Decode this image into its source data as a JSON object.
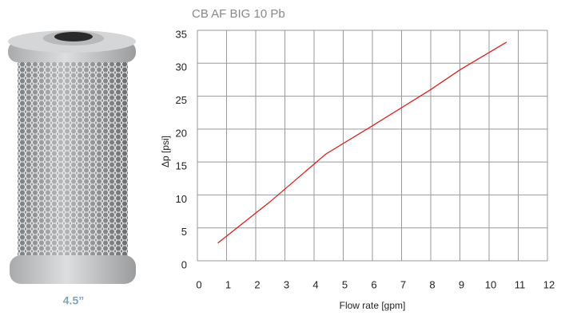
{
  "product": {
    "caption": "4.5”"
  },
  "chart_data": {
    "type": "line",
    "title": "CB AF BIG 10 Pb",
    "x_label": "Flow rate [gpm]",
    "y_label": "Δp [psi]",
    "series": [
      {
        "name": "CB AF BIG 10 Pb",
        "color": "#e0201c",
        "x": [
          0.7,
          2.5,
          4.4,
          6,
          8,
          9,
          10.6
        ],
        "values": [
          2.7,
          9,
          16.2,
          20.5,
          26,
          29,
          33.2
        ]
      }
    ],
    "xlim": [
      0,
      12
    ],
    "xticks": [
      0,
      1,
      2,
      3,
      4,
      5,
      6,
      7,
      8,
      9,
      10,
      11,
      12
    ],
    "ylim": [
      0,
      35
    ],
    "yticks": [
      0,
      5,
      10,
      15,
      20,
      25,
      30,
      35
    ],
    "grid": true
  }
}
